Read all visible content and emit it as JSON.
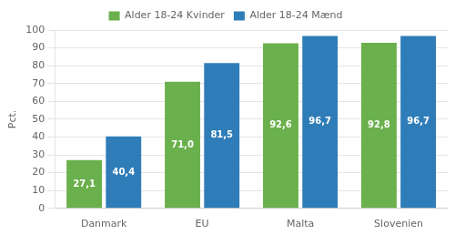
{
  "chart_data": {
    "type": "bar",
    "ylabel": "Pct.",
    "categories": [
      "Danmark",
      "EU",
      "Malta",
      "Slovenien"
    ],
    "series": [
      {
        "name": "Alder 18-24 Kvinder",
        "color": "#6ab04c",
        "values": [
          27.1,
          71.0,
          92.6,
          92.8
        ],
        "value_labels": [
          "27,1",
          "71,0",
          "92,6",
          "92,8"
        ]
      },
      {
        "name": "Alder 18-24 Mænd",
        "color": "#2f7db8",
        "values": [
          40.4,
          81.5,
          96.7,
          96.7
        ],
        "value_labels": [
          "40,4",
          "81,5",
          "96,7",
          "96,7"
        ]
      }
    ],
    "ylim": [
      0,
      100
    ],
    "yticks": [
      0,
      10,
      20,
      30,
      40,
      50,
      60,
      70,
      80,
      90,
      100
    ],
    "grid": true,
    "legend": "top",
    "data_labels": true
  }
}
